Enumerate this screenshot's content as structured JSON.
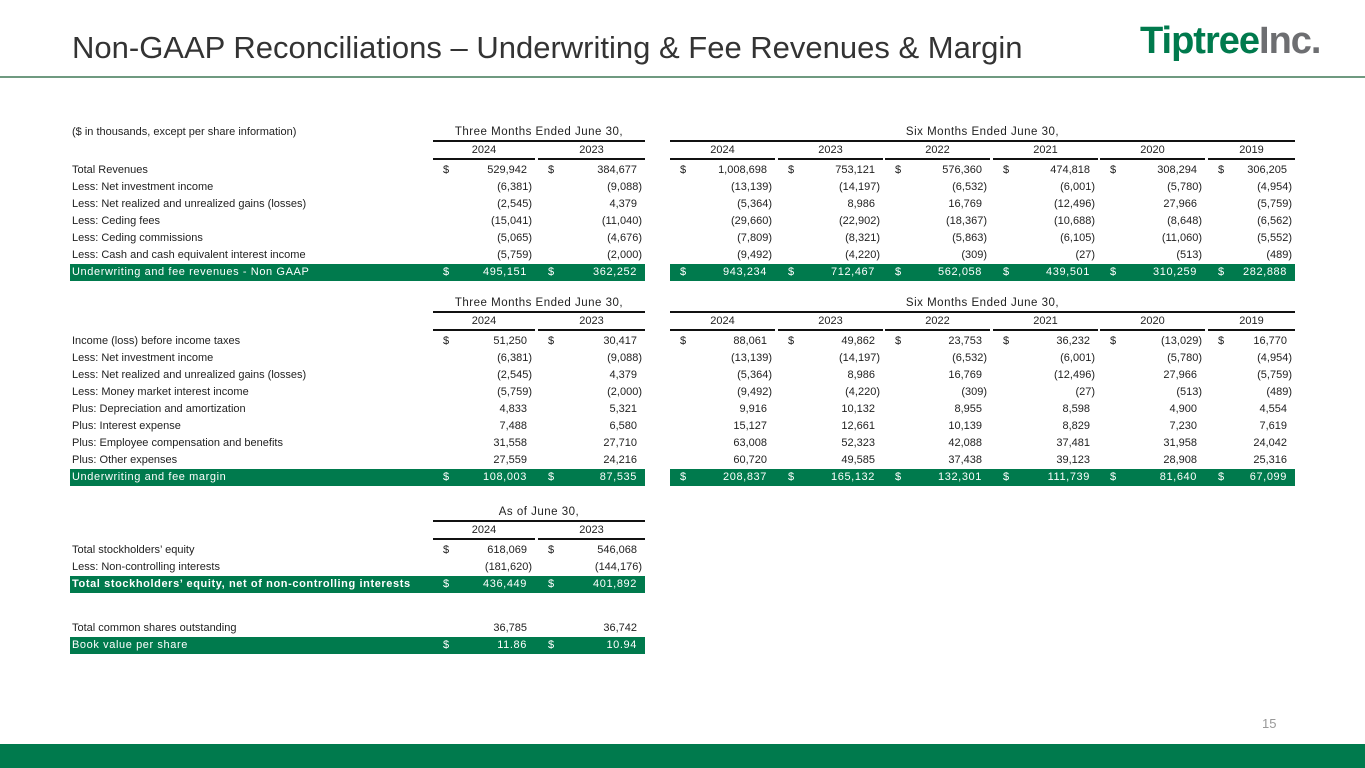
{
  "header": {
    "title": "Non-GAAP Reconciliations – Underwriting & Fee Revenues & Margin",
    "logo_a": "Tiptree",
    "logo_b": "Inc."
  },
  "page_number": "15",
  "units_note": "($ in thousands, except per share information)",
  "colors": {
    "brand_green": "#007a4d",
    "logo_gray": "#6d6e71"
  },
  "tables": [
    {
      "groups": [
        {
          "label": "Three Months Ended June 30,",
          "years": [
            "2024",
            "2023"
          ]
        },
        {
          "label": "Six Months Ended June 30,",
          "years": [
            "2024",
            "2023",
            "2022",
            "2021",
            "2020",
            "2019"
          ]
        }
      ],
      "rows": [
        {
          "label": "Total Revenues",
          "dollar": true,
          "values": [
            "529,942",
            "384,677",
            "1,008,698",
            "753,121",
            "576,360",
            "474,818",
            "308,294",
            "306,205"
          ]
        },
        {
          "label": "Less: Net investment income",
          "values": [
            "(6,381)",
            "(9,088)",
            "(13,139)",
            "(14,197)",
            "(6,532)",
            "(6,001)",
            "(5,780)",
            "(4,954)"
          ]
        },
        {
          "label": "Less: Net realized and unrealized gains (losses)",
          "values": [
            "(2,545)",
            "4,379",
            "(5,364)",
            "8,986",
            "16,769",
            "(12,496)",
            "27,966",
            "(5,759)"
          ]
        },
        {
          "label": "Less: Ceding fees",
          "values": [
            "(15,041)",
            "(11,040)",
            "(29,660)",
            "(22,902)",
            "(18,367)",
            "(10,688)",
            "(8,648)",
            "(6,562)"
          ]
        },
        {
          "label": "Less: Ceding commissions",
          "values": [
            "(5,065)",
            "(4,676)",
            "(7,809)",
            "(8,321)",
            "(5,863)",
            "(6,105)",
            "(11,060)",
            "(5,552)"
          ]
        },
        {
          "label": "Less: Cash and cash equivalent interest income",
          "values": [
            "(5,759)",
            "(2,000)",
            "(9,492)",
            "(4,220)",
            "(309)",
            "(27)",
            "(513)",
            "(489)"
          ]
        },
        {
          "label": "Underwriting and fee revenues - Non GAAP",
          "dollar": true,
          "total": true,
          "values": [
            "495,151",
            "362,252",
            "943,234",
            "712,467",
            "562,058",
            "439,501",
            "310,259",
            "282,888"
          ]
        }
      ]
    },
    {
      "groups": [
        {
          "label": "Three Months Ended June 30,",
          "years": [
            "2024",
            "2023"
          ]
        },
        {
          "label": "Six Months Ended June 30,",
          "years": [
            "2024",
            "2023",
            "2022",
            "2021",
            "2020",
            "2019"
          ]
        }
      ],
      "rows": [
        {
          "label": "Income (loss) before income taxes",
          "dollar": true,
          "values": [
            "51,250",
            "30,417",
            "88,061",
            "49,862",
            "23,753",
            "36,232",
            "(13,029)",
            "16,770"
          ]
        },
        {
          "label": "Less: Net investment income",
          "values": [
            "(6,381)",
            "(9,088)",
            "(13,139)",
            "(14,197)",
            "(6,532)",
            "(6,001)",
            "(5,780)",
            "(4,954)"
          ]
        },
        {
          "label": "Less: Net realized and unrealized gains (losses)",
          "values": [
            "(2,545)",
            "4,379",
            "(5,364)",
            "8,986",
            "16,769",
            "(12,496)",
            "27,966",
            "(5,759)"
          ]
        },
        {
          "label": "Less: Money market interest income",
          "values": [
            "(5,759)",
            "(2,000)",
            "(9,492)",
            "(4,220)",
            "(309)",
            "(27)",
            "(513)",
            "(489)"
          ]
        },
        {
          "label": "Plus: Depreciation and amortization",
          "values": [
            "4,833",
            "5,321",
            "9,916",
            "10,132",
            "8,955",
            "8,598",
            "4,900",
            "4,554"
          ]
        },
        {
          "label": "Plus: Interest expense",
          "values": [
            "7,488",
            "6,580",
            "15,127",
            "12,661",
            "10,139",
            "8,829",
            "7,230",
            "7,619"
          ]
        },
        {
          "label": "Plus: Employee compensation and benefits",
          "values": [
            "31,558",
            "27,710",
            "63,008",
            "52,323",
            "42,088",
            "37,481",
            "31,958",
            "24,042"
          ]
        },
        {
          "label": "Plus: Other expenses",
          "values": [
            "27,559",
            "24,216",
            "60,720",
            "49,585",
            "37,438",
            "39,123",
            "28,908",
            "25,316"
          ]
        },
        {
          "label": "Underwriting and fee margin",
          "dollar": true,
          "total": true,
          "values": [
            "108,003",
            "87,535",
            "208,837",
            "165,132",
            "132,301",
            "111,739",
            "81,640",
            "67,099"
          ]
        }
      ]
    },
    {
      "groups": [
        {
          "label": "As of June 30,",
          "years": [
            "2024",
            "2023"
          ]
        }
      ],
      "rows": [
        {
          "label": "Total stockholders’ equity",
          "dollar": true,
          "values": [
            "618,069",
            "546,068"
          ]
        },
        {
          "label": "Less: Non-controlling interests",
          "values": [
            "(181,620)",
            "(144,176)"
          ]
        },
        {
          "label": "Total stockholders’ equity, net of non-controlling interests",
          "dollar": true,
          "total": true,
          "bold": true,
          "values": [
            "436,449",
            "401,892"
          ]
        },
        {
          "label": "",
          "values": [
            "",
            ""
          ],
          "spacer": true
        },
        {
          "label": "Total common shares outstanding",
          "values": [
            "36,785",
            "36,742"
          ]
        },
        {
          "label": "Book value per share",
          "dollar": true,
          "total": true,
          "values": [
            "11.86",
            "10.94"
          ]
        }
      ]
    }
  ],
  "currency_symbol": "$"
}
